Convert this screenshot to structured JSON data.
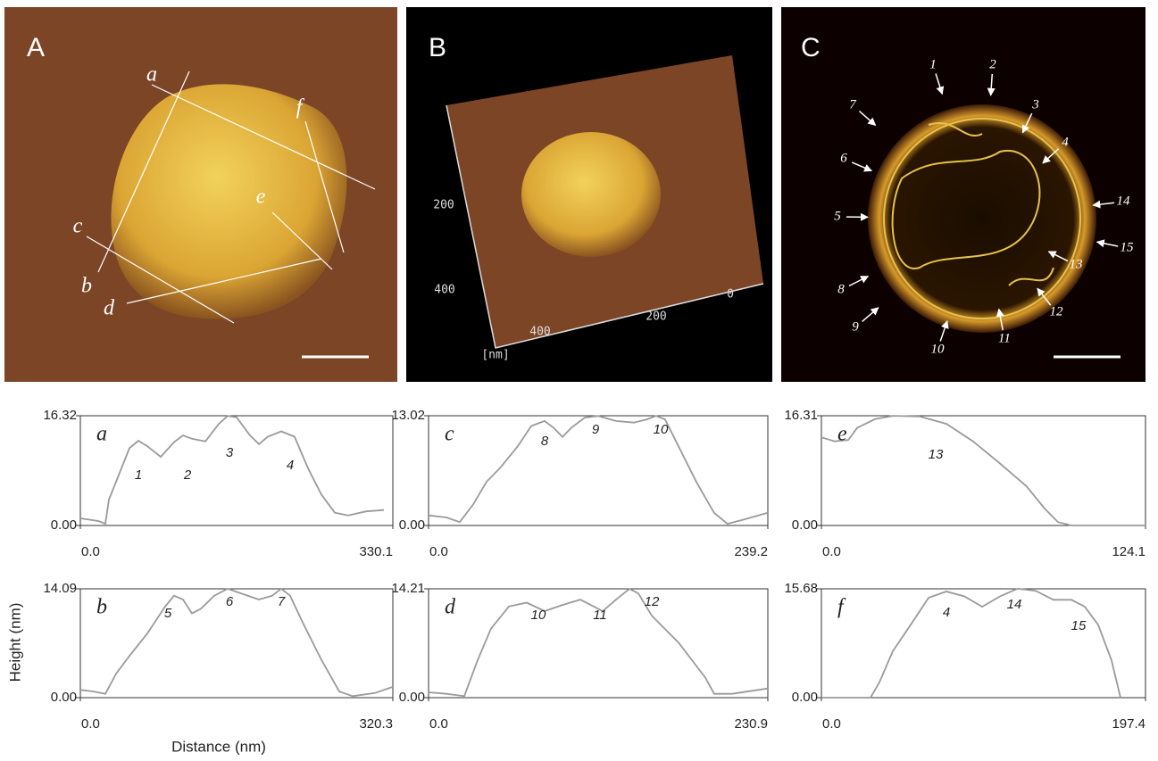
{
  "images": [
    {
      "panel": "A",
      "labels": [
        "a",
        "b",
        "c",
        "d",
        "e",
        "f"
      ]
    },
    {
      "panel": "B",
      "labels": [
        "200",
        "400",
        "400",
        "200",
        "0",
        "[nm]"
      ]
    },
    {
      "panel": "C",
      "labels": [
        "1",
        "2",
        "3",
        "4",
        "5",
        "6",
        "7",
        "8",
        "9",
        "10",
        "11",
        "12",
        "13",
        "14",
        "15"
      ]
    }
  ],
  "y_axis_title": "Height (nm)",
  "x_axis_title": "Distance (nm)",
  "chart_data": [
    {
      "type": "line",
      "label": "a",
      "x": [
        0,
        18.9,
        26.4,
        30.2,
        37.7,
        51.9,
        61.3,
        70.7,
        84.9,
        99.0,
        108.5,
        117.9,
        132.0,
        146.2,
        155.6,
        165.0,
        179.2,
        188.6,
        198.0,
        212.2,
        226.3,
        240.5,
        254.6,
        268.8,
        282.9,
        301.8,
        320.7
      ],
      "series": [
        {
          "color": "#9a9a9a",
          "values": [
            1.06,
            0.66,
            0.27,
            3.85,
            6.5,
            11.5,
            12.6,
            11.8,
            10.2,
            12.4,
            13.4,
            12.9,
            12.5,
            15.1,
            16.3,
            16.1,
            13.4,
            12.1,
            13.2,
            14.0,
            13.2,
            8.5,
            4.6,
            1.9,
            1.5,
            2.1,
            2.3
          ]
        }
      ],
      "xlim": [
        0,
        330.1
      ],
      "ylim": [
        0,
        16.32
      ],
      "xticks": [
        {
          "value": 0,
          "label": "0.0"
        },
        330.1
      ],
      "yticks": [
        {
          "value": 0,
          "label": "0.00"
        },
        16.32
      ],
      "annotations": [
        "1",
        "2",
        "3",
        "4"
      ]
    },
    {
      "type": "line",
      "label": "c",
      "x": [
        0,
        12.6,
        22.0,
        31.5,
        40.9,
        50.3,
        62.9,
        72.4,
        81.8,
        88.1,
        94.4,
        100.7,
        110.1,
        119.5,
        132.1,
        144.7,
        154.1,
        160.4,
        166.7,
        176.2,
        188.7,
        201.3,
        210.7,
        220.2,
        239.2
      ],
      "series": [
        {
          "color": "#9a9a9a",
          "values": [
            1.2,
            0.95,
            0.4,
            2.5,
            5.2,
            6.8,
            9.4,
            11.8,
            12.4,
            11.6,
            10.5,
            11.6,
            12.8,
            13.0,
            12.4,
            12.2,
            12.6,
            13.0,
            12.6,
            9.4,
            5.2,
            1.5,
            0.2,
            0.6,
            1.5
          ]
        }
      ],
      "xlim": [
        0,
        239.2
      ],
      "ylim": [
        0,
        13.02
      ],
      "xticks": [
        {
          "value": 0,
          "label": "0.0"
        },
        239.2
      ],
      "yticks": [
        {
          "value": 0,
          "label": "0.00"
        },
        13.02
      ],
      "annotations": [
        "8",
        "9",
        "10"
      ]
    },
    {
      "type": "line",
      "label": "e",
      "x": [
        0,
        5.1,
        10.3,
        13.7,
        20.5,
        27.4,
        37.6,
        47.9,
        58.1,
        68.4,
        78.6,
        85.5,
        90.6,
        95.8,
        124.1
      ],
      "series": [
        {
          "color": "#9a9a9a",
          "values": [
            13.1,
            12.5,
            12.7,
            14.5,
            15.8,
            16.3,
            16.2,
            15.1,
            12.5,
            9.2,
            5.8,
            2.5,
            0.5,
            0,
            0
          ]
        }
      ],
      "xlim": [
        0,
        124.1
      ],
      "ylim": [
        0,
        16.31
      ],
      "xticks": [
        {
          "value": 0,
          "label": "0.0"
        },
        124.1
      ],
      "yticks": [
        {
          "value": 0,
          "label": "0.00"
        },
        16.31
      ],
      "annotations": [
        "13"
      ]
    },
    {
      "type": "line",
      "label": "b",
      "x": [
        0,
        13.7,
        25.6,
        36.6,
        50.3,
        68.6,
        86.9,
        96.1,
        105.2,
        114.4,
        123.5,
        137.3,
        151.0,
        164.7,
        183.0,
        196.7,
        205.9,
        215.0,
        228.8,
        247.1,
        265.4,
        279.1,
        302.0,
        320.3
      ],
      "series": [
        {
          "color": "#9a9a9a",
          "values": [
            1.0,
            0.8,
            0.5,
            3.1,
            5.4,
            8.3,
            11.8,
            13.2,
            12.7,
            10.9,
            11.5,
            13.2,
            14.1,
            13.5,
            12.7,
            13.2,
            14.1,
            13.2,
            9.5,
            4.9,
            0.8,
            0.2,
            0.6,
            1.4
          ]
        }
      ],
      "xlim": [
        0,
        320.3
      ],
      "ylim": [
        0,
        14.09
      ],
      "xticks": [
        {
          "value": 0,
          "label": "0.0"
        },
        320.3
      ],
      "yticks": [
        {
          "value": 0,
          "label": "0.00"
        },
        14.09
      ],
      "annotations": [
        "5",
        "6",
        "7"
      ]
    },
    {
      "type": "line",
      "label": "d",
      "x": [
        0,
        12.2,
        24.3,
        33.4,
        42.5,
        54.7,
        66.8,
        79.0,
        91.1,
        103.3,
        112.4,
        118.5,
        127.6,
        136.7,
        142.8,
        151.9,
        170.1,
        188.4,
        194.4,
        206.6,
        230.9
      ],
      "series": [
        {
          "color": "#9a9a9a",
          "values": [
            0.7,
            0.5,
            0.2,
            4.9,
            9.0,
            11.9,
            12.4,
            11.3,
            12.1,
            12.8,
            11.9,
            11.3,
            12.8,
            14.2,
            13.6,
            10.7,
            7.2,
            2.6,
            0.5,
            0.5,
            1.2
          ]
        }
      ],
      "xlim": [
        0,
        230.9
      ],
      "ylim": [
        0,
        14.21
      ],
      "xticks": [
        {
          "value": 0,
          "label": "0.0"
        },
        230.9
      ],
      "yticks": [
        {
          "value": 0,
          "label": "0.00"
        },
        14.21
      ],
      "annotations": [
        "10",
        "11",
        "12"
      ]
    },
    {
      "type": "line",
      "label": "f",
      "x": [
        0,
        29.9,
        35.3,
        43.5,
        54.4,
        65.3,
        76.1,
        87.0,
        97.9,
        108.8,
        119.6,
        130.5,
        141.4,
        152.3,
        160.4,
        168.6,
        176.7,
        182.2
      ],
      "series": [
        {
          "color": "#9a9a9a",
          "values": [
            0,
            0,
            2.2,
            6.7,
            10.5,
            14.4,
            15.3,
            14.6,
            13.1,
            14.6,
            15.7,
            15.4,
            14.1,
            14.1,
            13.1,
            10.5,
            5.4,
            0
          ]
        }
      ],
      "xlim": [
        0,
        197.4
      ],
      "ylim": [
        0,
        15.68
      ],
      "xticks": [
        {
          "value": 0,
          "label": "0.0"
        },
        197.4
      ],
      "yticks": [
        {
          "value": 0,
          "label": "0.00"
        },
        15.68
      ],
      "annotations": [
        "4",
        "14",
        "15"
      ]
    }
  ]
}
